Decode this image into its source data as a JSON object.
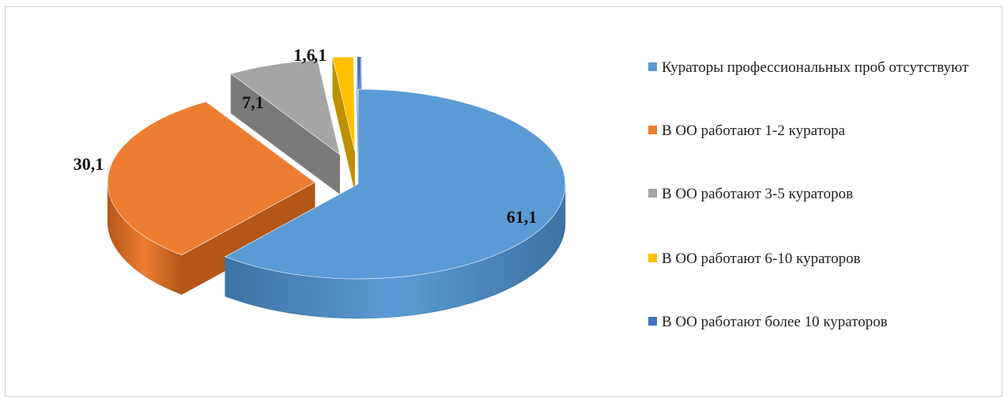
{
  "chart_data": {
    "type": "pie",
    "title": "",
    "categories": [
      "Кураторы профессиональных проб отсутствуют",
      "В ОО работают 1-2 куратора",
      "В ОО работают 3-5 кураторов",
      "В ОО работают 6-10 кураторов",
      "В ОО работают более 10 кураторов"
    ],
    "values": [
      61.1,
      30.1,
      7.1,
      1.6,
      0.1
    ],
    "data_labels": [
      "61,1",
      "30,1",
      "7,1",
      "1,6",
      ",1"
    ],
    "colors": [
      "#5b9bd5",
      "#ed7d31",
      "#a5a5a5",
      "#ffc000",
      "#4472c4"
    ],
    "side_colors": [
      "#3d72a3",
      "#b35618",
      "#7a7a7a",
      "#bf9000",
      "#2f5597"
    ],
    "legend_position": "right",
    "style": "3d-exploded"
  }
}
